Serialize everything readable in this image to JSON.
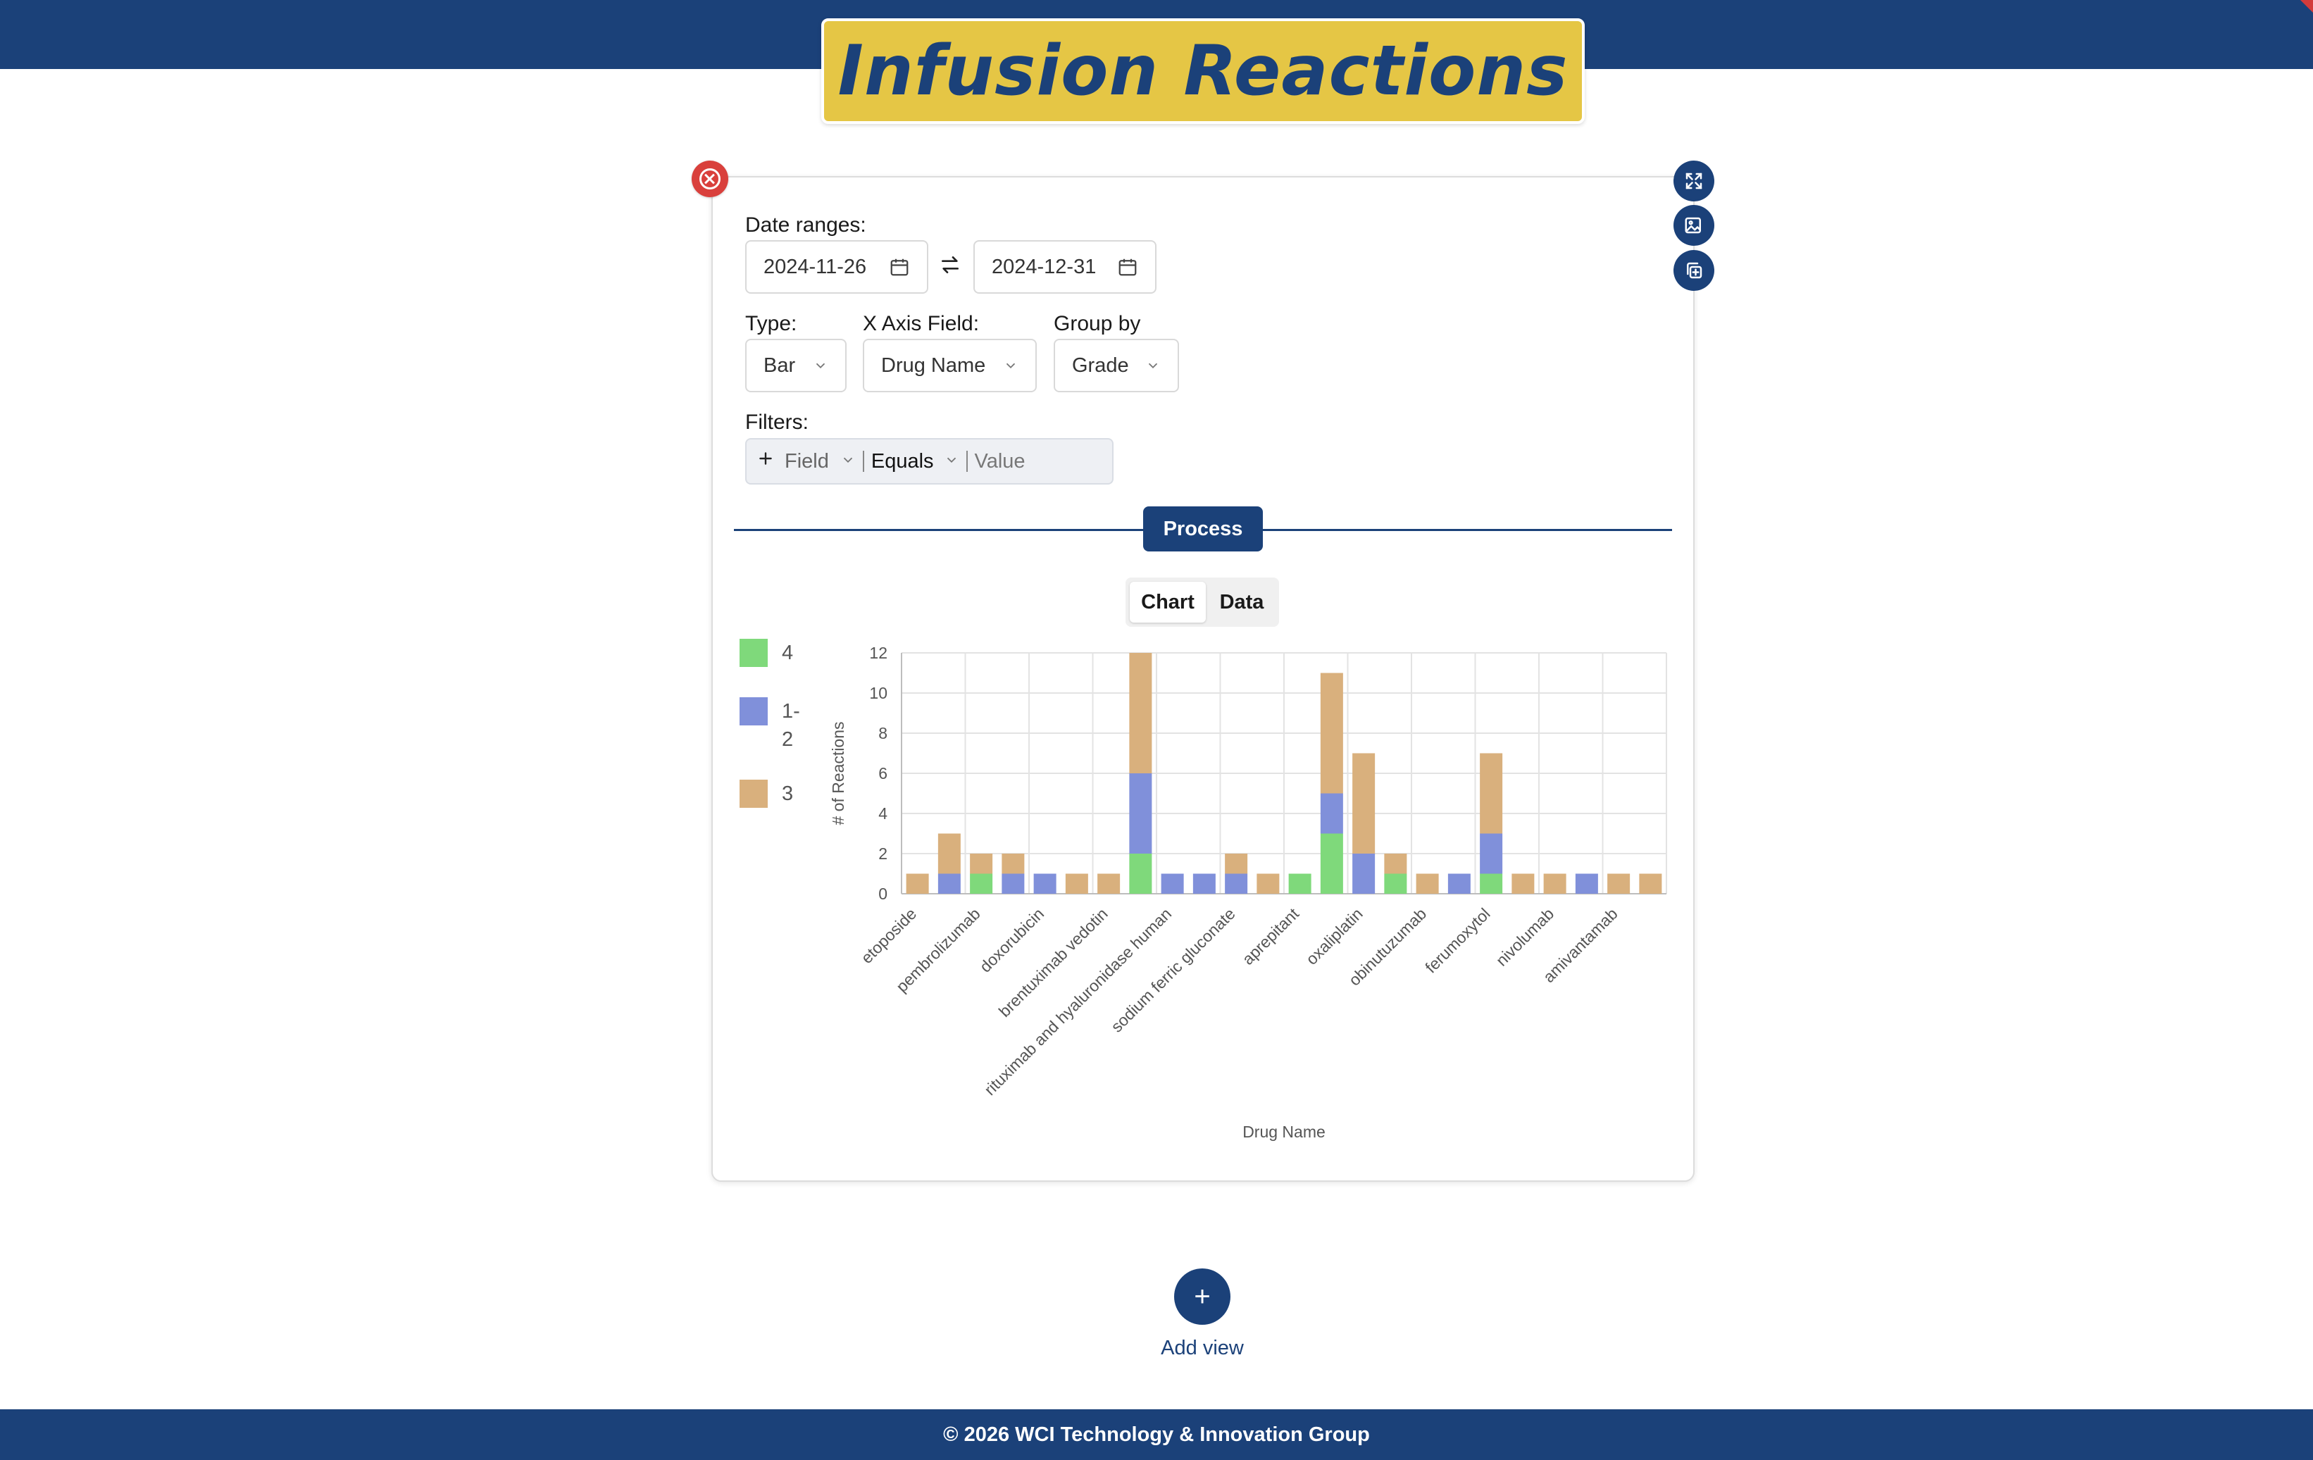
{
  "header": {
    "title": "Infusion Reactions"
  },
  "view": {
    "date_ranges_label": "Date ranges:",
    "start_date": "2024-11-26",
    "end_date": "2024-12-31",
    "type_label": "Type:",
    "type_value": "Bar",
    "x_axis_label": "X Axis Field:",
    "x_axis_value": "Drug Name",
    "group_by_label": "Group by",
    "group_by_value": "Grade",
    "filters_label": "Filters:",
    "filter_field": "Field",
    "filter_operator": "Equals",
    "filter_value_placeholder": "Value",
    "process_label": "Process",
    "tabs": {
      "chart": "Chart",
      "data": "Data"
    }
  },
  "icons": {
    "close": "close-circle-icon",
    "expand": "expand-icon",
    "export_image": "image-export-icon",
    "duplicate": "duplicate-icon",
    "calendar": "calendar-icon",
    "swap": "swap-arrows-icon",
    "plus": "plus-icon",
    "chevron": "chevron-down-icon"
  },
  "legend": [
    {
      "label": "4",
      "color": "#7fd97b"
    },
    {
      "label": "1-2",
      "color": "#8090da"
    },
    {
      "label": "3",
      "color": "#d9b07d"
    }
  ],
  "chart_data": {
    "type": "bar",
    "stacked": true,
    "xlabel": "Drug Name",
    "ylabel": "# of Reactions",
    "ylim": [
      0,
      12
    ],
    "yticks": [
      0,
      2,
      4,
      6,
      8,
      10,
      12
    ],
    "grid": true,
    "legend_position": "left",
    "categories": [
      "etoposide",
      "",
      "pembrolizumab",
      "",
      "doxorubicin",
      "",
      "brentuximab vedotin",
      "",
      "rituximab and hyaluronidase human",
      "",
      "sodium ferric gluconate",
      "",
      "aprepitant",
      "",
      "oxaliplatin",
      "",
      "obinutuzumab",
      "",
      "ferumoxytol",
      "",
      "nivolumab",
      "",
      "amivantamab",
      ""
    ],
    "series": [
      {
        "name": "4",
        "color": "#7fd97b",
        "values": [
          0,
          0,
          1,
          0,
          0,
          0,
          0,
          2,
          0,
          0,
          0,
          0,
          1,
          3,
          0,
          1,
          0,
          0,
          1,
          0,
          0,
          0,
          0,
          0
        ]
      },
      {
        "name": "1-2",
        "color": "#8090da",
        "values": [
          0,
          1,
          0,
          1,
          1,
          0,
          0,
          4,
          1,
          1,
          1,
          0,
          0,
          2,
          2,
          0,
          0,
          1,
          2,
          0,
          0,
          1,
          0,
          0
        ]
      },
      {
        "name": "3",
        "color": "#d9b07d",
        "values": [
          1,
          2,
          1,
          1,
          0,
          1,
          1,
          6,
          0,
          0,
          1,
          1,
          0,
          6,
          5,
          1,
          1,
          0,
          4,
          1,
          1,
          0,
          1,
          1
        ]
      }
    ]
  },
  "add_view": {
    "label": "Add view",
    "button": "+"
  },
  "footer": {
    "text": "© 2026 WCI Technology & Innovation Group"
  }
}
